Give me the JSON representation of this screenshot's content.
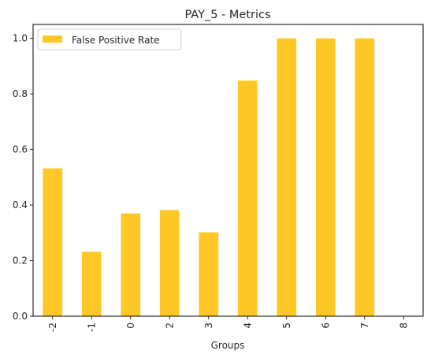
{
  "chart_data": {
    "type": "bar",
    "title": "PAY_5 - Metrics",
    "xlabel": "Groups",
    "ylabel": "",
    "categories": [
      "-2",
      "-1",
      "0",
      "2",
      "3",
      "4",
      "5",
      "6",
      "7",
      "8"
    ],
    "series": [
      {
        "name": "False Positive Rate",
        "color": "#FFC826",
        "values": [
          0.532,
          0.232,
          0.37,
          0.382,
          0.302,
          0.848,
          1.0,
          1.0,
          1.0,
          0.0
        ]
      }
    ],
    "ylim": [
      0,
      1.05
    ],
    "yticks": [
      "0.0",
      "0.2",
      "0.4",
      "0.6",
      "0.8",
      "1.0"
    ],
    "grid": false,
    "legend_position": "upper-left",
    "x_tick_rotation": "vertical"
  }
}
